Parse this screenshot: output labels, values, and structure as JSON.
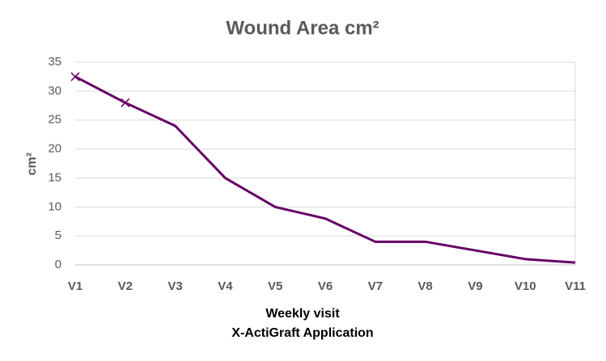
{
  "chart_data": {
    "type": "line",
    "title": "Wound Area cm²",
    "ylabel": "cm²",
    "xlabel": [
      "Weekly visit",
      "X-ActiGraft Application"
    ],
    "categories": [
      "V1",
      "V2",
      "V3",
      "V4",
      "V5",
      "V6",
      "V7",
      "V8",
      "V9",
      "V10",
      "V11"
    ],
    "values": [
      32.5,
      28,
      24,
      15,
      10,
      8,
      4,
      4,
      2.5,
      1,
      0.4
    ],
    "color": "#660066",
    "marker_indices": [
      0,
      1
    ],
    "ylim": [
      0,
      35
    ],
    "yticks": [
      0,
      5,
      10,
      15,
      20,
      25,
      30,
      35
    ],
    "grid": true
  }
}
